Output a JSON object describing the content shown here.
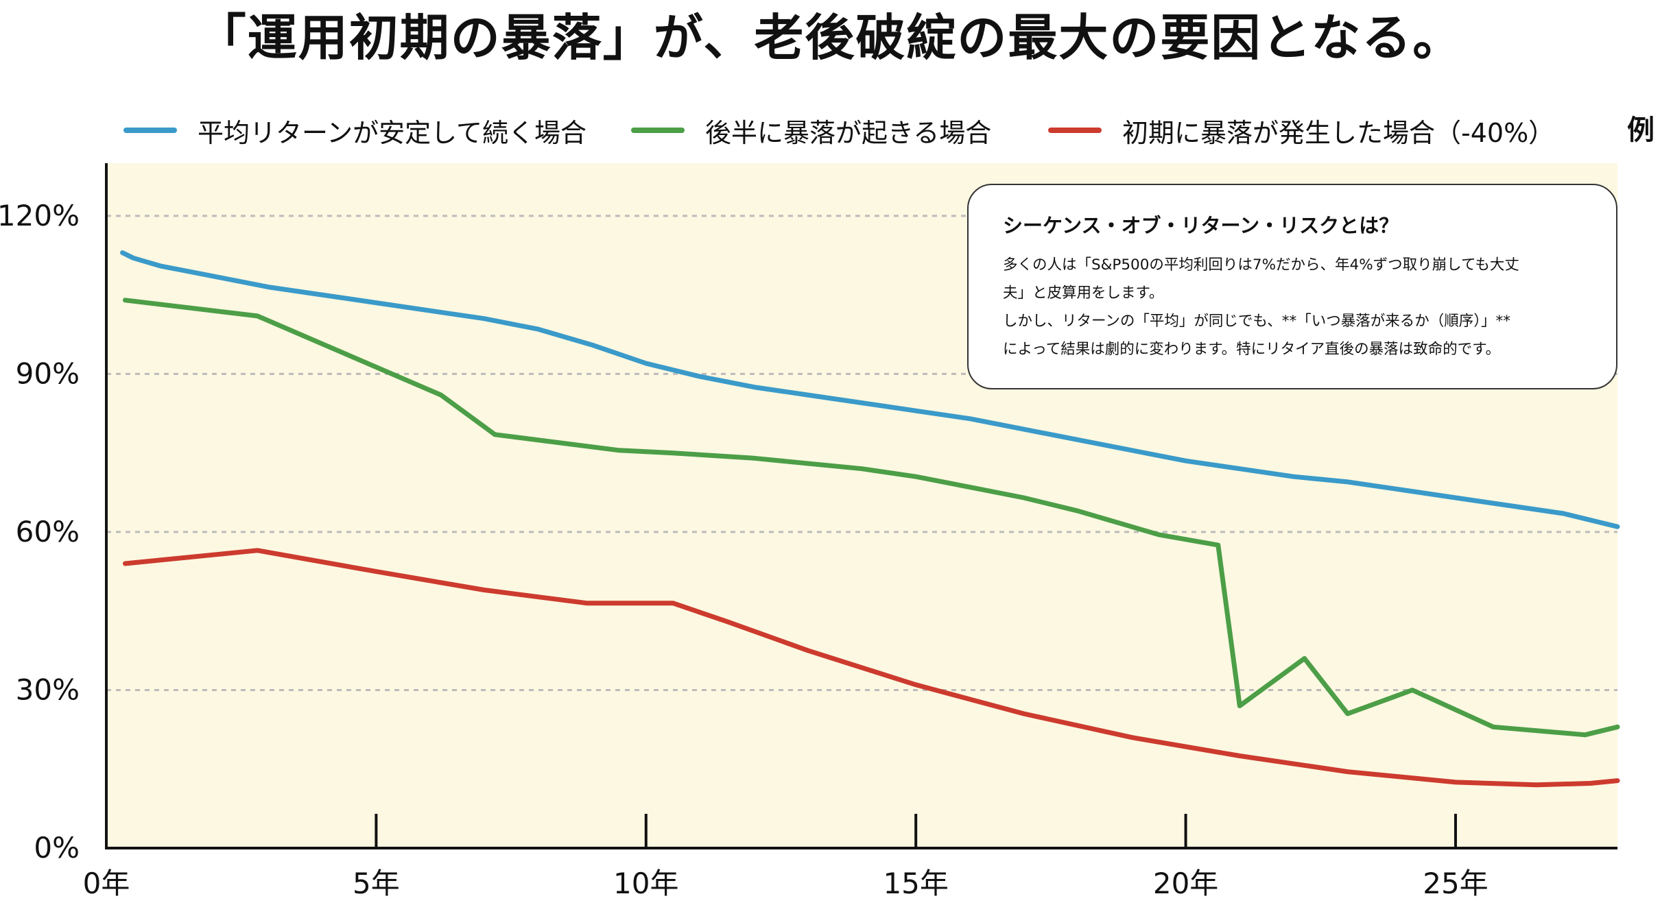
{
  "title": "「運用初期の暴落」が、老後破綻の最大の要因となる。",
  "legend_suffix": "例",
  "info_box": {
    "title": "シーケンス・オブ・リターン・リスクとは？",
    "lines": [
      "多くの人は「S&P500の平均利回りは7%だから、年4%ずつ取り崩しても大丈",
      "夫」と皮算用をします。",
      "しかし、リターンの「平均」が同じでも、**「いつ暴落が来るか（順序）」**",
      "によって結果は劇的に変わります。特にリタイア直後の暴落は致命的です。"
    ]
  },
  "colors": {
    "plot_background": "#fdf8e1",
    "axis": "#111111",
    "grid": "#bbbbbb"
  },
  "chart_data": {
    "type": "line",
    "xlim": [
      0,
      28
    ],
    "ylim": [
      0,
      130
    ],
    "x_ticks": [
      0,
      5,
      10,
      15,
      20,
      25
    ],
    "x_tick_labels": [
      "0年",
      "5年",
      "10年",
      "15年",
      "20年",
      "25年"
    ],
    "y_ticks": [
      0,
      30,
      60,
      90,
      120
    ],
    "y_tick_labels": [
      "0%",
      "30%",
      "60%",
      "90%",
      "120%"
    ],
    "grid": "horizontal dashed",
    "legend_position": "top",
    "series": [
      {
        "name": "平均リターンが安定して続く場合",
        "color": "#3a9ac9",
        "points": [
          [
            0.3,
            113
          ],
          [
            0.5,
            112
          ],
          [
            1,
            110.5
          ],
          [
            2,
            108.5
          ],
          [
            3,
            106.5
          ],
          [
            4,
            105
          ],
          [
            5,
            103.5
          ],
          [
            6,
            102
          ],
          [
            7,
            100.5
          ],
          [
            8,
            98.5
          ],
          [
            9,
            95.5
          ],
          [
            10,
            92
          ],
          [
            11,
            89.5
          ],
          [
            12,
            87.5
          ],
          [
            13,
            86
          ],
          [
            14,
            84.5
          ],
          [
            15,
            83
          ],
          [
            16,
            81.5
          ],
          [
            17,
            79.5
          ],
          [
            18,
            77.5
          ],
          [
            19,
            75.5
          ],
          [
            20,
            73.5
          ],
          [
            21,
            72
          ],
          [
            22,
            70.5
          ],
          [
            23,
            69.5
          ],
          [
            24,
            68
          ],
          [
            25,
            66.5
          ],
          [
            26,
            65
          ],
          [
            27,
            63.5
          ],
          [
            28,
            61
          ]
        ]
      },
      {
        "name": "後半に暴落が起きる場合",
        "color": "#4c9e47",
        "points": [
          [
            0.35,
            104
          ],
          [
            2.8,
            101
          ],
          [
            6.2,
            86
          ],
          [
            7.2,
            78.5
          ],
          [
            9.5,
            75.5
          ],
          [
            10.5,
            75
          ],
          [
            12,
            74
          ],
          [
            14,
            72
          ],
          [
            15,
            70.5
          ],
          [
            16,
            68.5
          ],
          [
            17,
            66.5
          ],
          [
            18,
            64
          ],
          [
            19.5,
            59.5
          ],
          [
            20.6,
            57.5
          ],
          [
            21.0,
            27
          ],
          [
            22.2,
            36
          ],
          [
            23.0,
            25.5
          ],
          [
            24.2,
            30
          ],
          [
            25.7,
            23
          ],
          [
            27.4,
            21.5
          ],
          [
            28,
            23
          ]
        ]
      },
      {
        "name": "初期に暴落が発生した場合（-40%）",
        "color": "#cc3b2e",
        "points": [
          [
            0.35,
            54
          ],
          [
            2.8,
            56.5
          ],
          [
            5,
            52.5
          ],
          [
            7,
            49
          ],
          [
            8.9,
            46.5
          ],
          [
            10.5,
            46.5
          ],
          [
            11.5,
            43
          ],
          [
            13,
            37.5
          ],
          [
            15,
            31
          ],
          [
            17,
            25.5
          ],
          [
            19,
            21
          ],
          [
            21,
            17.5
          ],
          [
            23,
            14.5
          ],
          [
            25,
            12.5
          ],
          [
            26.5,
            12
          ],
          [
            27.5,
            12.3
          ],
          [
            28,
            12.8
          ]
        ]
      }
    ]
  }
}
